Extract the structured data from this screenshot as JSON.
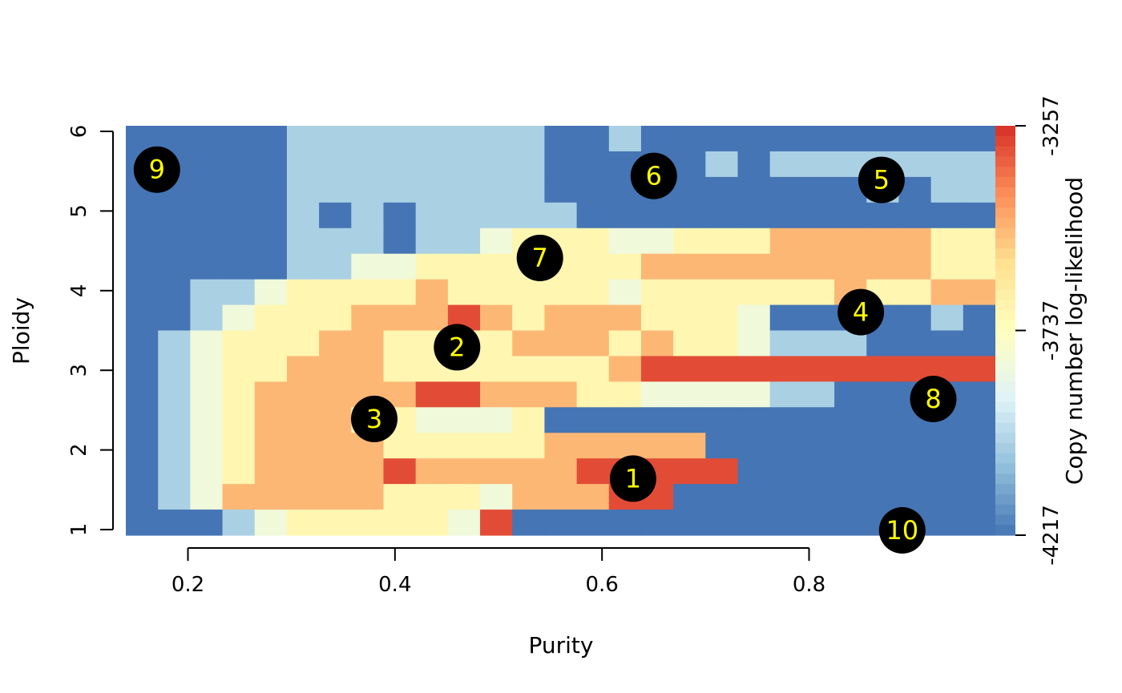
{
  "chart_data": {
    "type": "heatmap",
    "title": "",
    "xlabel": "Purity",
    "ylabel": "Ploidy",
    "xlim": [
      0.14,
      0.98
    ],
    "ylim": [
      0.93,
      6.07
    ],
    "x_range": [
      0.14,
      0.98
    ],
    "y_range": [
      0.93,
      6.07
    ],
    "xticks": [
      0.2,
      0.4,
      0.6,
      0.8
    ],
    "xtick_labels": [
      "0.2",
      "0.4",
      "0.6",
      "0.8"
    ],
    "yticks": [
      1,
      2,
      3,
      4,
      5,
      6
    ],
    "ytick_labels": [
      "1",
      "2",
      "3",
      "4",
      "5",
      "6"
    ],
    "colorbar": {
      "label": "Copy number log-likelihood",
      "min": -4217,
      "max": -3257,
      "ticks": [
        -4217,
        -3737,
        -3257
      ],
      "tick_labels": [
        "-4217",
        "-3737",
        "-3257"
      ],
      "colors": [
        "#4575b4",
        "#91bfdb",
        "#e0f3f8",
        "#ffffbf",
        "#fee090",
        "#fc8d59",
        "#d73027"
      ]
    },
    "grid": false,
    "value_levels": [
      "B",
      "b",
      "c",
      "y",
      "o",
      "R"
    ],
    "level_values": {
      "B": 0.0,
      "b": 0.22,
      "c": 0.42,
      "y": 0.55,
      "o": 0.75,
      "R": 0.95
    },
    "rows_top_to_bottom": [
      "BBBBBbbbbbbbbBBbBBBBBBBBBBB",
      "BBBBBbbbbbbbbBBBBBbBbbbbbbb",
      "BBBBBbbbbbbbbBBBBBBBBBBbBbb",
      "BBBBBbBbBbbbbbBBBBBBBBBBBBB",
      "BBBBBbbbBbbcyyyccyyyoooooyy",
      "BBBBBbbccyyyyyyyoooooooooyy",
      "BBbbcyyyyoyyyyycyyyyyyoyyoo",
      "BBbcyyyoooRoyoooyyycBBBBBbB",
      "BbcyyyooyyyyoooyoyycbbbBBBB",
      "BbcyyoooyyyyyyyoRRRRRRRRRRR",
      "BbcyoooooRRoooyyccccbbBBBBB",
      "BbcyoooyycccyBBBBBBBBBBBBBB",
      "BbcyooooyyyyyoooooBBBBBBBBB",
      "BbcyooooRoooooRRRRRBBBBBBBB",
      "BbcoooooyyycoooRRBBBBBBBBBB",
      "BBBbcyyyyycRBBBBBBBBBBBBBBB"
    ],
    "solutions": [
      {
        "label": "1",
        "x": 0.63,
        "y": 1.64
      },
      {
        "label": "2",
        "x": 0.46,
        "y": 3.29
      },
      {
        "label": "3",
        "x": 0.38,
        "y": 2.39
      },
      {
        "label": "4",
        "x": 0.85,
        "y": 3.73
      },
      {
        "label": "5",
        "x": 0.87,
        "y": 5.39
      },
      {
        "label": "6",
        "x": 0.65,
        "y": 5.44
      },
      {
        "label": "7",
        "x": 0.54,
        "y": 4.41
      },
      {
        "label": "8",
        "x": 0.92,
        "y": 2.64
      },
      {
        "label": "9",
        "x": 0.17,
        "y": 5.52
      },
      {
        "label": "10",
        "x": 0.89,
        "y": 0.99
      }
    ],
    "marker_fill": "#000000",
    "marker_text_color": "#ffff00"
  }
}
